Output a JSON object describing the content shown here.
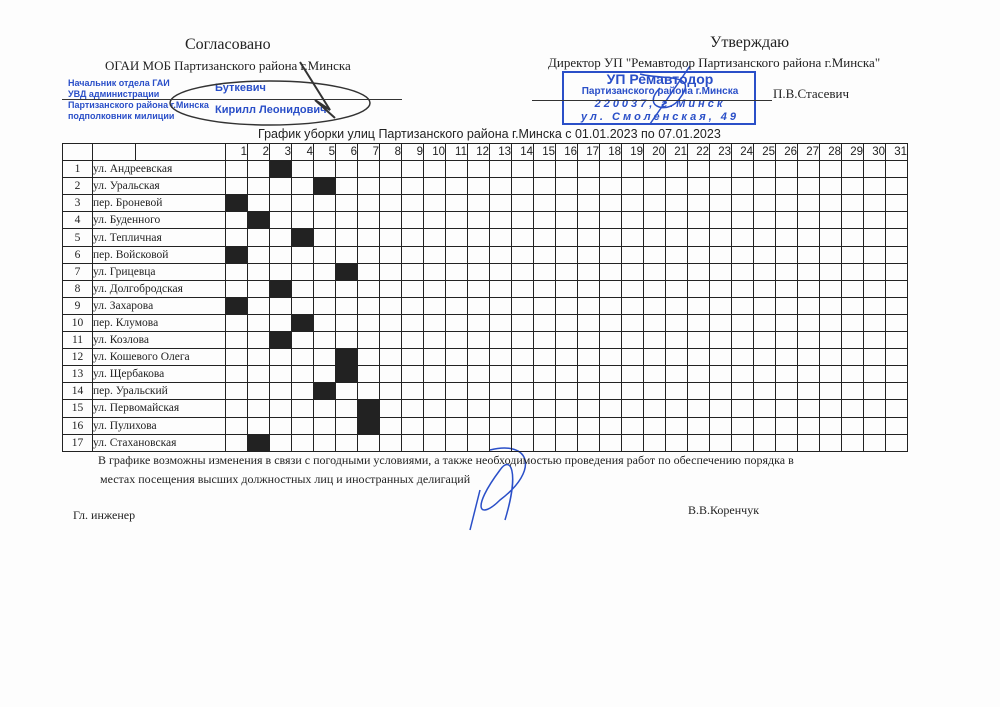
{
  "left_header": {
    "title": "Согласовано",
    "org": "ОГАИ МОБ Партизанского района г.Минска",
    "stamp_lines": [
      "Начальник отдела ГАИ",
      "УВД администрации",
      "Партизанского района г.Минска",
      "подполковник милиции"
    ],
    "stamp_surname": "Буткевич",
    "stamp_name": "Кирилл Леонидович"
  },
  "right_header": {
    "title": "Утверждаю",
    "position": "Директор УП \"Ремавтодор Партизанского района г.Минска\"",
    "name": "П.В.Стасевич",
    "stamp_lines": [
      "УП Ремавтодор",
      "Партизанского района г.Минска",
      "220037, г.Минск",
      "ул. Смоленская, 49"
    ]
  },
  "schedule_title": "График уборки улиц Партизанского района г.Минска с 01.01.2023 по 07.01.2023",
  "days": [
    "1",
    "2",
    "3",
    "4",
    "5",
    "6",
    "7",
    "8",
    "9",
    "10",
    "11",
    "12",
    "13",
    "14",
    "15",
    "16",
    "17",
    "18",
    "19",
    "20",
    "21",
    "22",
    "23",
    "24",
    "25",
    "26",
    "27",
    "28",
    "29",
    "30",
    "31"
  ],
  "rows": [
    {
      "num": "1",
      "street": "ул. Андреевская",
      "day": 3
    },
    {
      "num": "2",
      "street": "ул. Уральская",
      "day": 5
    },
    {
      "num": "3",
      "street": "пер. Броневой",
      "day": 1
    },
    {
      "num": "4",
      "street": "ул. Буденного",
      "day": 2
    },
    {
      "num": "5",
      "street": "ул. Тепличная",
      "day": 4
    },
    {
      "num": "6",
      "street": "пер. Войсковой",
      "day": 1
    },
    {
      "num": "7",
      "street": "ул. Грицевца",
      "day": 6
    },
    {
      "num": "8",
      "street": "ул. Долгобродская",
      "day": 3
    },
    {
      "num": "9",
      "street": "ул. Захарова",
      "day": 1
    },
    {
      "num": "10",
      "street": "пер. Клумова",
      "day": 4
    },
    {
      "num": "11",
      "street": "ул. Козлова",
      "day": 3
    },
    {
      "num": "12",
      "street": "ул. Кошевого Олега",
      "day": 6
    },
    {
      "num": "13",
      "street": "ул. Щербакова",
      "day": 6
    },
    {
      "num": "14",
      "street": "пер. Уральский",
      "day": 5
    },
    {
      "num": "15",
      "street": "ул. Первомайская",
      "day": 7
    },
    {
      "num": "16",
      "street": "ул. Пулихова",
      "day": 7
    },
    {
      "num": "17",
      "street": "ул. Стахановская",
      "day": 2
    }
  ],
  "note_line1": "В графике возможны изменения в связи с погодными условиями, а также необходимостью проведения работ по обеспечению порядка в",
  "note_line2": "местах посещения высших должностных лиц и иностранных делигаций",
  "footer": {
    "position": "Гл. инженер",
    "name": "В.В.Коренчук"
  },
  "colors": {
    "stamp_blue": "#2a4fc8",
    "fill": "#222222"
  }
}
